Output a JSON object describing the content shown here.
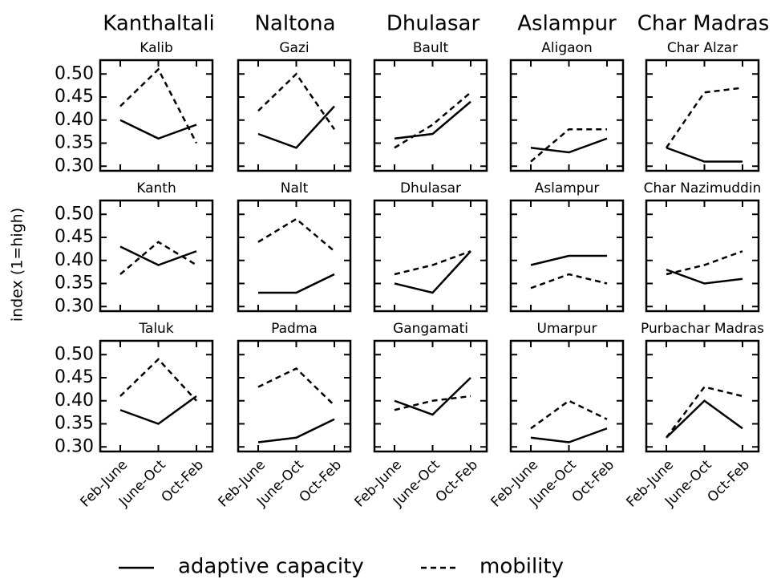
{
  "column_titles": [
    "Kanthaltali",
    "Naltona",
    "Dhulasar",
    "Aslampur",
    "Char Madras"
  ],
  "y_label": "index (1=high)",
  "chart_data": [
    {
      "type": "line",
      "title": "Kalib",
      "categories": [
        "Feb-June",
        "June-Oct",
        "Oct-Feb"
      ],
      "ylim": [
        0.29,
        0.53
      ],
      "yticks": [
        {
          "value": 0.3,
          "label": "0.30"
        },
        0.35,
        {
          "value": 0.4,
          "label": "0.40"
        },
        0.45,
        {
          "value": 0.5,
          "label": "0.50"
        }
      ],
      "series": [
        {
          "name": "adaptive capacity",
          "color": "#000000",
          "linestyle": "solid",
          "values": [
            0.4,
            0.36,
            0.39
          ]
        },
        {
          "name": "mobility",
          "color": "#000000",
          "linestyle": "dashed",
          "values": [
            0.43,
            0.51,
            0.35
          ]
        }
      ]
    },
    {
      "type": "line",
      "title": "Gazi",
      "categories": [
        "Feb-June",
        "June-Oct",
        "Oct-Feb"
      ],
      "ylim": [
        0.29,
        0.53
      ],
      "yticks": [
        {
          "value": 0.3,
          "label": "0.30"
        },
        0.35,
        {
          "value": 0.4,
          "label": "0.40"
        },
        0.45,
        {
          "value": 0.5,
          "label": "0.50"
        }
      ],
      "series": [
        {
          "name": "adaptive capacity",
          "color": "#000000",
          "linestyle": "solid",
          "values": [
            0.37,
            0.34,
            0.43
          ]
        },
        {
          "name": "mobility",
          "color": "#000000",
          "linestyle": "dashed",
          "values": [
            0.42,
            0.5,
            0.38
          ]
        }
      ]
    },
    {
      "type": "line",
      "title": "Bault",
      "categories": [
        "Feb-June",
        "June-Oct",
        "Oct-Feb"
      ],
      "ylim": [
        0.29,
        0.53
      ],
      "yticks": [
        {
          "value": 0.3,
          "label": "0.30"
        },
        0.35,
        {
          "value": 0.4,
          "label": "0.40"
        },
        0.45,
        {
          "value": 0.5,
          "label": "0.50"
        }
      ],
      "series": [
        {
          "name": "adaptive capacity",
          "color": "#000000",
          "linestyle": "solid",
          "values": [
            0.36,
            0.37,
            0.44
          ]
        },
        {
          "name": "mobility",
          "color": "#000000",
          "linestyle": "dashed",
          "values": [
            0.34,
            0.39,
            0.46
          ]
        }
      ]
    },
    {
      "type": "line",
      "title": "Aligaon",
      "categories": [
        "Feb-June",
        "June-Oct",
        "Oct-Feb"
      ],
      "ylim": [
        0.29,
        0.53
      ],
      "yticks": [
        {
          "value": 0.3,
          "label": "0.30"
        },
        0.35,
        {
          "value": 0.4,
          "label": "0.40"
        },
        0.45,
        {
          "value": 0.5,
          "label": "0.50"
        }
      ],
      "series": [
        {
          "name": "adaptive capacity",
          "color": "#000000",
          "linestyle": "solid",
          "values": [
            0.34,
            0.33,
            0.36
          ]
        },
        {
          "name": "mobility",
          "color": "#000000",
          "linestyle": "dashed",
          "values": [
            0.31,
            0.38,
            0.38
          ]
        }
      ]
    },
    {
      "type": "line",
      "title": "Char Alzar",
      "categories": [
        "Feb-June",
        "June-Oct",
        "Oct-Feb"
      ],
      "ylim": [
        0.29,
        0.53
      ],
      "yticks": [
        {
          "value": 0.3,
          "label": "0.30"
        },
        0.35,
        {
          "value": 0.4,
          "label": "0.40"
        },
        0.45,
        {
          "value": 0.5,
          "label": "0.50"
        }
      ],
      "series": [
        {
          "name": "adaptive capacity",
          "color": "#000000",
          "linestyle": "solid",
          "values": [
            0.34,
            0.31,
            0.31
          ]
        },
        {
          "name": "mobility",
          "color": "#000000",
          "linestyle": "dashed",
          "values": [
            0.34,
            0.46,
            0.47
          ]
        }
      ]
    },
    {
      "type": "line",
      "title": "Kanth",
      "categories": [
        "Feb-June",
        "June-Oct",
        "Oct-Feb"
      ],
      "ylim": [
        0.29,
        0.53
      ],
      "yticks": [
        {
          "value": 0.3,
          "label": "0.30"
        },
        0.35,
        {
          "value": 0.4,
          "label": "0.40"
        },
        0.45,
        {
          "value": 0.5,
          "label": "0.50"
        }
      ],
      "series": [
        {
          "name": "adaptive capacity",
          "color": "#000000",
          "linestyle": "solid",
          "values": [
            0.43,
            0.39,
            0.42
          ]
        },
        {
          "name": "mobility",
          "color": "#000000",
          "linestyle": "dashed",
          "values": [
            0.37,
            0.44,
            0.39
          ]
        }
      ]
    },
    {
      "type": "line",
      "title": "Nalt",
      "categories": [
        "Feb-June",
        "June-Oct",
        "Oct-Feb"
      ],
      "ylim": [
        0.29,
        0.53
      ],
      "yticks": [
        {
          "value": 0.3,
          "label": "0.30"
        },
        0.35,
        {
          "value": 0.4,
          "label": "0.40"
        },
        0.45,
        {
          "value": 0.5,
          "label": "0.50"
        }
      ],
      "series": [
        {
          "name": "adaptive capacity",
          "color": "#000000",
          "linestyle": "solid",
          "values": [
            0.33,
            0.33,
            0.37
          ]
        },
        {
          "name": "mobility",
          "color": "#000000",
          "linestyle": "dashed",
          "values": [
            0.44,
            0.49,
            0.42
          ]
        }
      ]
    },
    {
      "type": "line",
      "title": "Dhulasar",
      "categories": [
        "Feb-June",
        "June-Oct",
        "Oct-Feb"
      ],
      "ylim": [
        0.29,
        0.53
      ],
      "yticks": [
        {
          "value": 0.3,
          "label": "0.30"
        },
        0.35,
        {
          "value": 0.4,
          "label": "0.40"
        },
        0.45,
        {
          "value": 0.5,
          "label": "0.50"
        }
      ],
      "series": [
        {
          "name": "adaptive capacity",
          "color": "#000000",
          "linestyle": "solid",
          "values": [
            0.35,
            0.33,
            0.42
          ]
        },
        {
          "name": "mobility",
          "color": "#000000",
          "linestyle": "dashed",
          "values": [
            0.37,
            0.39,
            0.42
          ]
        }
      ]
    },
    {
      "type": "line",
      "title": "Aslampur",
      "categories": [
        "Feb-June",
        "June-Oct",
        "Oct-Feb"
      ],
      "ylim": [
        0.29,
        0.53
      ],
      "yticks": [
        {
          "value": 0.3,
          "label": "0.30"
        },
        0.35,
        {
          "value": 0.4,
          "label": "0.40"
        },
        0.45,
        {
          "value": 0.5,
          "label": "0.50"
        }
      ],
      "series": [
        {
          "name": "adaptive capacity",
          "color": "#000000",
          "linestyle": "solid",
          "values": [
            0.39,
            0.41,
            0.41
          ]
        },
        {
          "name": "mobility",
          "color": "#000000",
          "linestyle": "dashed",
          "values": [
            0.34,
            0.37,
            0.35
          ]
        }
      ]
    },
    {
      "type": "line",
      "title": "Char Nazimuddin",
      "categories": [
        "Feb-June",
        "June-Oct",
        "Oct-Feb"
      ],
      "ylim": [
        0.29,
        0.53
      ],
      "yticks": [
        {
          "value": 0.3,
          "label": "0.30"
        },
        0.35,
        {
          "value": 0.4,
          "label": "0.40"
        },
        0.45,
        {
          "value": 0.5,
          "label": "0.50"
        }
      ],
      "series": [
        {
          "name": "adaptive capacity",
          "color": "#000000",
          "linestyle": "solid",
          "values": [
            0.38,
            0.35,
            0.36
          ]
        },
        {
          "name": "mobility",
          "color": "#000000",
          "linestyle": "dashed",
          "values": [
            0.37,
            0.39,
            0.42
          ]
        }
      ]
    },
    {
      "type": "line",
      "title": "Taluk",
      "categories": [
        "Feb-June",
        "June-Oct",
        "Oct-Feb"
      ],
      "ylim": [
        0.29,
        0.53
      ],
      "yticks": [
        {
          "value": 0.3,
          "label": "0.30"
        },
        0.35,
        {
          "value": 0.4,
          "label": "0.40"
        },
        0.45,
        {
          "value": 0.5,
          "label": "0.50"
        }
      ],
      "series": [
        {
          "name": "adaptive capacity",
          "color": "#000000",
          "linestyle": "solid",
          "values": [
            0.38,
            0.35,
            0.41
          ]
        },
        {
          "name": "mobility",
          "color": "#000000",
          "linestyle": "dashed",
          "values": [
            0.41,
            0.49,
            0.4
          ]
        }
      ]
    },
    {
      "type": "line",
      "title": "Padma",
      "categories": [
        "Feb-June",
        "June-Oct",
        "Oct-Feb"
      ],
      "ylim": [
        0.29,
        0.53
      ],
      "yticks": [
        {
          "value": 0.3,
          "label": "0.30"
        },
        0.35,
        {
          "value": 0.4,
          "label": "0.40"
        },
        0.45,
        {
          "value": 0.5,
          "label": "0.50"
        }
      ],
      "series": [
        {
          "name": "adaptive capacity",
          "color": "#000000",
          "linestyle": "solid",
          "values": [
            0.31,
            0.32,
            0.36
          ]
        },
        {
          "name": "mobility",
          "color": "#000000",
          "linestyle": "dashed",
          "values": [
            0.43,
            0.47,
            0.39
          ]
        }
      ]
    },
    {
      "type": "line",
      "title": "Gangamati",
      "categories": [
        "Feb-June",
        "June-Oct",
        "Oct-Feb"
      ],
      "ylim": [
        0.29,
        0.53
      ],
      "yticks": [
        {
          "value": 0.3,
          "label": "0.30"
        },
        0.35,
        {
          "value": 0.4,
          "label": "0.40"
        },
        0.45,
        {
          "value": 0.5,
          "label": "0.50"
        }
      ],
      "series": [
        {
          "name": "adaptive capacity",
          "color": "#000000",
          "linestyle": "solid",
          "values": [
            0.4,
            0.37,
            0.45
          ]
        },
        {
          "name": "mobility",
          "color": "#000000",
          "linestyle": "dashed",
          "values": [
            0.38,
            0.4,
            0.41
          ]
        }
      ]
    },
    {
      "type": "line",
      "title": "Umarpur",
      "categories": [
        "Feb-June",
        "June-Oct",
        "Oct-Feb"
      ],
      "ylim": [
        0.29,
        0.53
      ],
      "yticks": [
        {
          "value": 0.3,
          "label": "0.30"
        },
        0.35,
        {
          "value": 0.4,
          "label": "0.40"
        },
        0.45,
        {
          "value": 0.5,
          "label": "0.50"
        }
      ],
      "series": [
        {
          "name": "adaptive capacity",
          "color": "#000000",
          "linestyle": "solid",
          "values": [
            0.32,
            0.31,
            0.34
          ]
        },
        {
          "name": "mobility",
          "color": "#000000",
          "linestyle": "dashed",
          "values": [
            0.34,
            0.4,
            0.36
          ]
        }
      ]
    },
    {
      "type": "line",
      "title": "Purbachar Madras",
      "categories": [
        "Feb-June",
        "June-Oct",
        "Oct-Feb"
      ],
      "ylim": [
        0.29,
        0.53
      ],
      "yticks": [
        {
          "value": 0.3,
          "label": "0.30"
        },
        0.35,
        {
          "value": 0.4,
          "label": "0.40"
        },
        0.45,
        {
          "value": 0.5,
          "label": "0.50"
        }
      ],
      "series": [
        {
          "name": "adaptive capacity",
          "color": "#000000",
          "linestyle": "solid",
          "values": [
            0.32,
            0.4,
            0.34
          ]
        },
        {
          "name": "mobility",
          "color": "#000000",
          "linestyle": "dashed",
          "values": [
            0.32,
            0.43,
            0.41
          ]
        }
      ]
    }
  ]
}
